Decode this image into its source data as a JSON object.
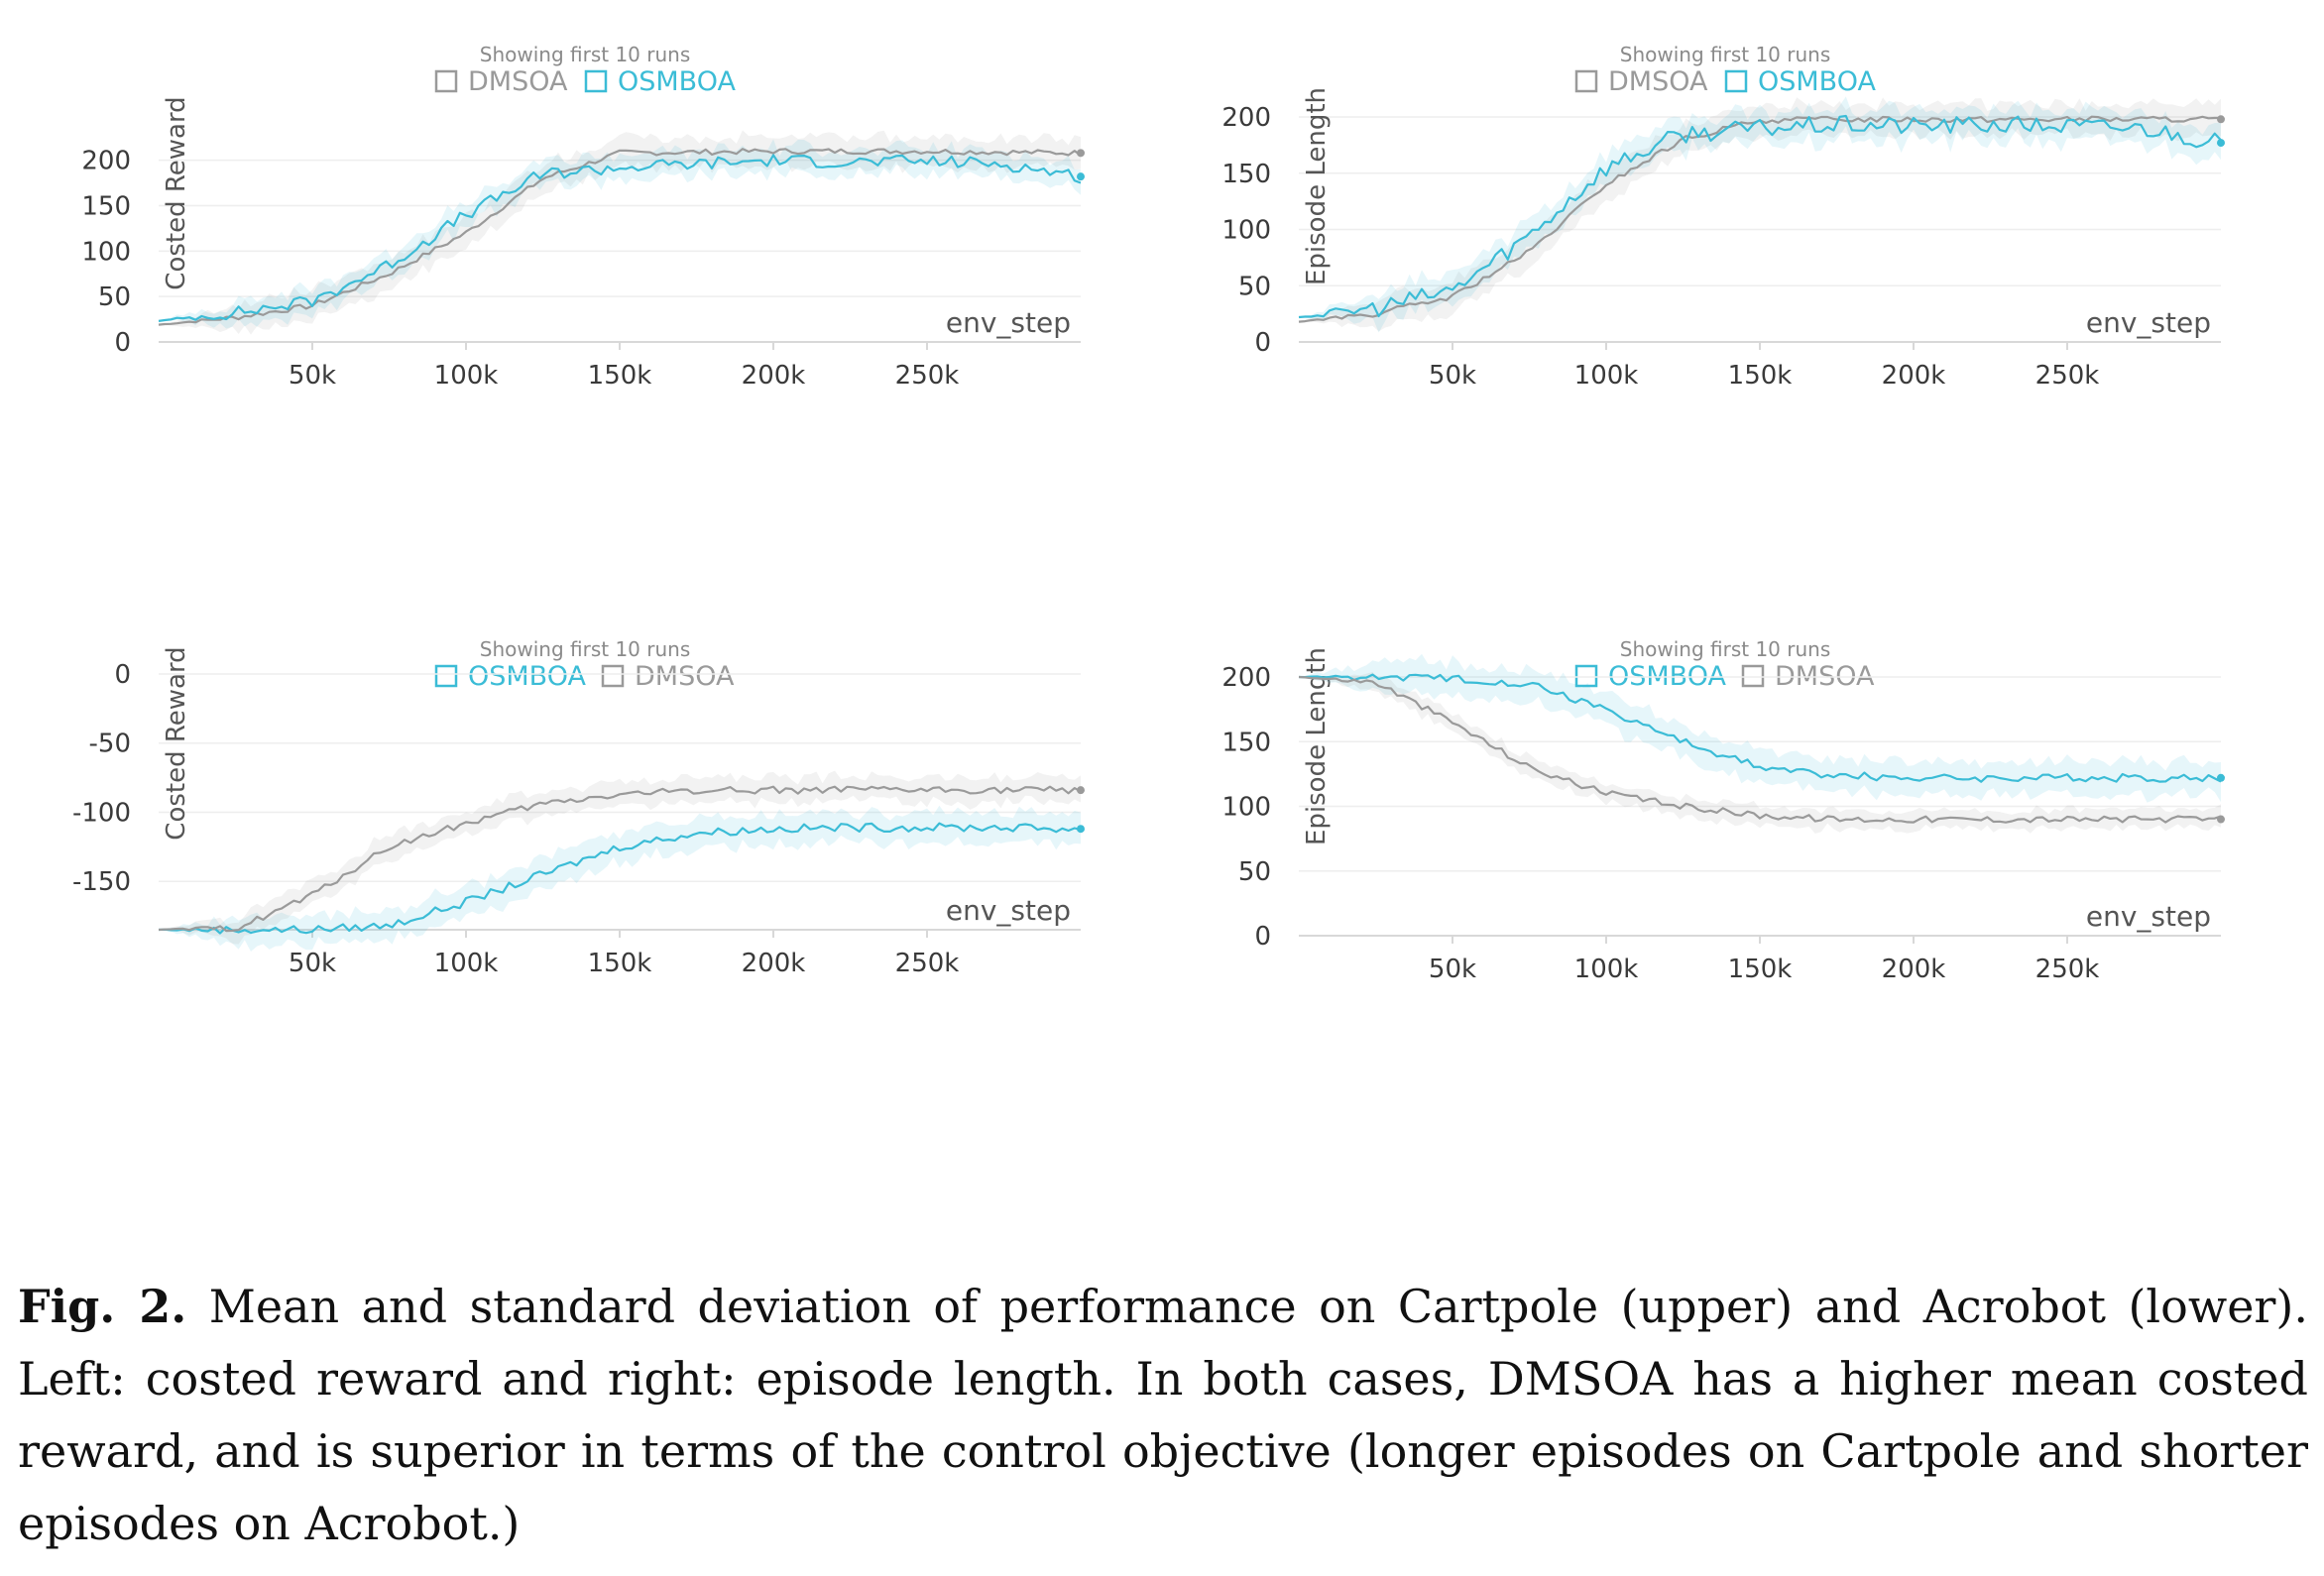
{
  "colors": {
    "DMSOA": "#9a9a9a",
    "OSMBOA": "#3bbcd6",
    "grid": "#eeeeee",
    "axis": "#d8d8d8"
  },
  "chart_data": [
    {
      "type": "line",
      "subtitle": "Showing first 10 runs",
      "ylabel": "Costed Reward",
      "xlabel": "env_step",
      "xticks": [
        "50k",
        "100k",
        "150k",
        "200k",
        "250k"
      ],
      "xtick_values": [
        50000,
        100000,
        150000,
        200000,
        250000
      ],
      "yticks": [
        "0",
        "50",
        "100",
        "150",
        "200"
      ],
      "ytick_values": [
        0,
        50,
        100,
        150,
        200
      ],
      "xlim": [
        0,
        300000
      ],
      "ylim": [
        0,
        240
      ],
      "grid": "horizontal",
      "legend_position": "top",
      "x": [
        0,
        25000,
        50000,
        75000,
        100000,
        125000,
        150000,
        175000,
        200000,
        225000,
        250000,
        275000,
        300000
      ],
      "series": [
        {
          "name": "DMSOA",
          "color": "#9a9a9a",
          "values": [
            19,
            27,
            40,
            75,
            120,
            180,
            208,
            209,
            210,
            210,
            210,
            209,
            208
          ],
          "band": 18,
          "noise": 3
        },
        {
          "name": "OSMBOA",
          "color": "#3bbcd6",
          "values": [
            23,
            32,
            45,
            85,
            140,
            185,
            192,
            196,
            200,
            198,
            199,
            196,
            182
          ],
          "band": 15,
          "noise": 7
        }
      ]
    },
    {
      "type": "line",
      "subtitle": "Showing first 10 runs",
      "ylabel": "Episode Length",
      "xlabel": "env_step",
      "xticks": [
        "50k",
        "100k",
        "150k",
        "200k",
        "250k"
      ],
      "xtick_values": [
        50000,
        100000,
        150000,
        200000,
        250000
      ],
      "yticks": [
        "0",
        "50",
        "100",
        "150",
        "200"
      ],
      "ytick_values": [
        0,
        50,
        100,
        150,
        200
      ],
      "xlim": [
        0,
        300000
      ],
      "ylim": [
        0,
        200
      ],
      "grid": "horizontal",
      "legend_position": "top",
      "x": [
        0,
        25000,
        50000,
        75000,
        100000,
        125000,
        150000,
        175000,
        200000,
        225000,
        250000,
        275000,
        300000
      ],
      "series": [
        {
          "name": "DMSOA",
          "color": "#9a9a9a",
          "values": [
            18,
            25,
            40,
            80,
            140,
            180,
            197,
            198,
            198,
            198,
            198,
            198,
            198
          ],
          "band": 15,
          "noise": 2.5
        },
        {
          "name": "OSMBOA",
          "color": "#3bbcd6",
          "values": [
            22,
            30,
            46,
            95,
            155,
            185,
            190,
            193,
            192,
            193,
            192,
            190,
            177
          ],
          "band": 15,
          "noise": 8
        }
      ]
    },
    {
      "type": "line",
      "subtitle": "Showing first 10 runs",
      "ylabel": "Costed Reward",
      "xlabel": "env_step",
      "xticks": [
        "50k",
        "100k",
        "150k",
        "200k",
        "250k"
      ],
      "xtick_values": [
        50000,
        100000,
        150000,
        200000,
        250000
      ],
      "yticks": [
        "0",
        "-50",
        "-100",
        "-150"
      ],
      "ytick_values": [
        0,
        -50,
        -100,
        -150
      ],
      "xlim": [
        0,
        300000
      ],
      "ylim": [
        -185,
        0
      ],
      "grid": "horizontal",
      "legend_position": "top",
      "x": [
        0,
        25000,
        50000,
        75000,
        100000,
        125000,
        150000,
        175000,
        200000,
        225000,
        250000,
        275000,
        300000
      ],
      "series": [
        {
          "name": "OSMBOA",
          "color": "#3bbcd6",
          "values": [
            -185,
            -185,
            -185,
            -182,
            -165,
            -145,
            -125,
            -115,
            -112,
            -111,
            -111,
            -111,
            -112
          ],
          "band": 12,
          "noise": 3
        },
        {
          "name": "DMSOA",
          "color": "#9a9a9a",
          "values": [
            -185,
            -184,
            -160,
            -125,
            -108,
            -94,
            -87,
            -84,
            -84,
            -84,
            -84,
            -84,
            -84
          ],
          "band": 10,
          "noise": 2.5
        }
      ]
    },
    {
      "type": "line",
      "subtitle": "Showing first 10 runs",
      "ylabel": "Episode Length",
      "xlabel": "env_step",
      "xticks": [
        "50k",
        "100k",
        "150k",
        "200k",
        "250k"
      ],
      "xtick_values": [
        50000,
        100000,
        150000,
        200000,
        250000
      ],
      "yticks": [
        "0",
        "50",
        "100",
        "150",
        "200"
      ],
      "ytick_values": [
        0,
        50,
        100,
        150,
        200
      ],
      "xlim": [
        0,
        300000
      ],
      "ylim": [
        0,
        200
      ],
      "grid": "horizontal",
      "legend_position": "top",
      "x": [
        0,
        25000,
        50000,
        75000,
        100000,
        125000,
        150000,
        175000,
        200000,
        225000,
        250000,
        275000,
        300000
      ],
      "series": [
        {
          "name": "OSMBOA",
          "color": "#3bbcd6",
          "values": [
            200,
            200,
            199,
            195,
            175,
            150,
            130,
            124,
            122,
            122,
            122,
            122,
            122
          ],
          "band": 14,
          "noise": 3
        },
        {
          "name": "DMSOA",
          "color": "#9a9a9a",
          "values": [
            200,
            196,
            165,
            130,
            110,
            100,
            93,
            90,
            90,
            90,
            90,
            90,
            90
          ],
          "band": 8,
          "noise": 2.5
        }
      ]
    }
  ],
  "caption": {
    "label": "Fig. 2.",
    "text": "Mean and standard deviation of performance on Cartpole (upper) and Acrobot (lower). Left: costed reward and right: episode length. In both cases, DMSOA has a higher mean costed reward, and is superior in terms of the control objective (longer episodes on Cartpole and shorter episodes on Acrobot.)"
  }
}
